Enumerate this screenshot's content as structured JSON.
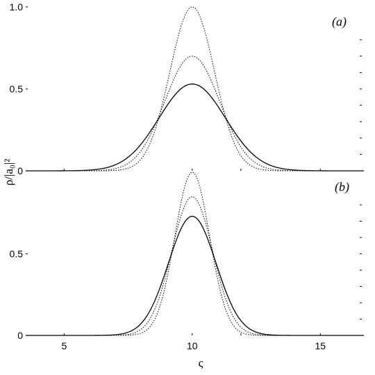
{
  "chart_data": [
    {
      "type": "line",
      "panel_label": "(a)",
      "xlim": [
        3.5,
        16.7
      ],
      "ylim": [
        0,
        1.0
      ],
      "xticks": [
        5,
        10,
        15
      ],
      "xtick_labels": [
        "",
        "",
        ""
      ],
      "yticks": [
        0,
        0.5,
        1.0
      ],
      "ytick_labels": [
        "0",
        "0.5",
        "1.0"
      ],
      "ylabel": "ρ/|a₀|²",
      "grid": false,
      "series": [
        {
          "style": "solid",
          "peak": 0.53,
          "center": 10,
          "sigma": 1.3
        },
        {
          "style": "dotted",
          "peak": 0.7,
          "center": 10,
          "sigma": 1.07
        },
        {
          "style": "dotted",
          "peak": 1.0,
          "center": 10,
          "sigma": 0.87
        }
      ]
    },
    {
      "type": "line",
      "panel_label": "(b)",
      "xlim": [
        3.5,
        16.7
      ],
      "ylim": [
        0,
        1.0
      ],
      "xticks": [
        5,
        10,
        15
      ],
      "xtick_labels": [
        "5",
        "10",
        "15"
      ],
      "yticks": [
        0,
        0.5
      ],
      "ytick_labels": [
        "0",
        "0.5"
      ],
      "xlabel": "ς",
      "grid": false,
      "series": [
        {
          "style": "solid",
          "peak": 0.73,
          "center": 10,
          "sigma": 0.93
        },
        {
          "style": "dotted",
          "peak": 0.85,
          "center": 10,
          "sigma": 0.8
        },
        {
          "style": "dotted",
          "peak": 1.0,
          "center": 10,
          "sigma": 0.68
        }
      ]
    }
  ]
}
